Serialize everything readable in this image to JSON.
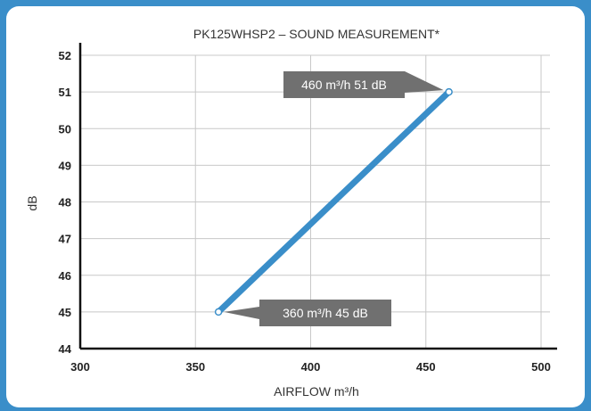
{
  "chart_data": {
    "type": "line",
    "title": "PK125WHSP2 – SOUND MEASUREMENT*",
    "xlabel": "AIRFLOW m³/h",
    "ylabel": "dB",
    "xlim": [
      300,
      500
    ],
    "ylim": [
      44,
      52
    ],
    "x_ticks": [
      "300",
      "350",
      "400",
      "450",
      "500"
    ],
    "y_ticks": [
      "44",
      "45",
      "46",
      "47",
      "48",
      "49",
      "50",
      "51",
      "52"
    ],
    "grid": true,
    "series": [
      {
        "x": [
          360,
          460
        ],
        "y": [
          45,
          51
        ],
        "color": "#3a8ec9"
      }
    ],
    "annotations": [
      {
        "text": "460 m³/h  51 dB",
        "x": 460,
        "y": 51
      },
      {
        "text": "360 m³/h  45 dB",
        "x": 360,
        "y": 45
      }
    ]
  },
  "colors": {
    "frame": "#3a8ec9",
    "line": "#3a8ec9",
    "callout": "#707070",
    "grid": "#c8c8c8"
  }
}
